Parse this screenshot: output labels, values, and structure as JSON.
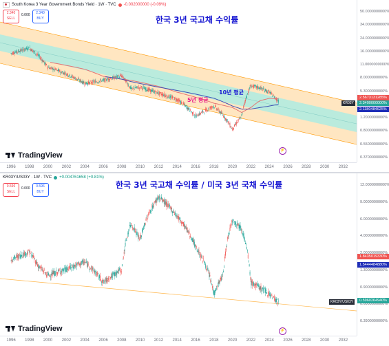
{
  "colors": {
    "candle_up": "#26a69a",
    "candle_down": "#ef5350",
    "ma_short": "#e57373",
    "ma_long": "#3f51b5",
    "channel_inner": "#b2ebe0",
    "channel_outer": "#ffe0b2",
    "title_blue": "#1919d2",
    "anno_pink": "#e91e8c"
  },
  "pane1": {
    "legend": {
      "symbol": "South Korea 3 Year Government Bonds Yield · 1W · TVC",
      "change": "-0.002000000 (-0.09%)"
    },
    "sell": {
      "price": "2.340",
      "label": "SELL"
    },
    "spread": "0.000",
    "buy": {
      "price": "2.340",
      "label": "BUY"
    },
    "title": "한국 3년 국고채 수익률",
    "anno_10y": "10년 평균",
    "anno_5y": "5년 평균",
    "y_ticks": [
      "50.0000000000%",
      "34.0000000000%",
      "24.0000000000%",
      "16.0000000000%",
      "11.0000000000%",
      "8.0000000000%",
      "5.3000000000%",
      "3.5000000000%",
      "1.2000000000%",
      "0.8000000000%",
      "0.5500000000%",
      "0.3700000000%"
    ],
    "price_tags": [
      "2.5673131285%",
      "2.3400000000%",
      "2.1180484625%"
    ],
    "sym_tag": "KR03Y",
    "x_ticks": [
      "1996",
      "1998",
      "2000",
      "2002",
      "2004",
      "2006",
      "2008",
      "2010",
      "2012",
      "2014",
      "2016",
      "2018",
      "2020",
      "2022",
      "2024",
      "2026",
      "2028",
      "2030",
      "2032"
    ],
    "logo": "TradingView",
    "icon": "lightning-icon"
  },
  "pane2": {
    "legend": {
      "symbol": "KR03Y/US03Y · 1W · TVC",
      "change": "+0.004761658 (+0.81%)"
    },
    "sell": {
      "price": "0.596",
      "label": "SELL"
    },
    "spread": "0.000",
    "buy": {
      "price": "0.596",
      "label": "BUY"
    },
    "title": "한국 3년 국고채 수익률 / 미국 3년 국채 수익률",
    "y_ticks": [
      "12.0000000000%",
      "9.0000000000%",
      "6.0000000000%",
      "4.0000000000%",
      "2.0000000000%",
      "1.3000000000%",
      "0.9000000000%",
      "0.6000000000%",
      "0.3900000000%"
    ],
    "price_tags": [
      "1.8435019330%",
      "1.5444484880%",
      "0.5960264940%"
    ],
    "sym_tag": "KR03Y/US03Y",
    "x_ticks": [
      "1996",
      "1998",
      "2000",
      "2002",
      "2004",
      "2006",
      "2008",
      "2010",
      "2012",
      "2014",
      "2016",
      "2018",
      "2020",
      "2022",
      "2024",
      "2026",
      "2028",
      "2030",
      "2032"
    ],
    "logo": "TradingView",
    "icon": "lightning-icon"
  },
  "chart_data": [
    {
      "type": "line",
      "title": "한국 3년 국고채 수익률",
      "log_scale": true,
      "x": [
        1996,
        1998,
        2000,
        2002,
        2004,
        2006,
        2008,
        2009,
        2010,
        2012,
        2014,
        2016,
        2018,
        2020,
        2021,
        2022,
        2023,
        2024,
        2025
      ],
      "series": [
        {
          "name": "KR03Y",
          "values": [
            12.0,
            14.5,
            7.5,
            6.0,
            4.3,
            4.8,
            5.6,
            3.6,
            3.8,
            3.1,
            2.5,
            1.4,
            2.0,
            0.9,
            1.4,
            4.0,
            3.7,
            3.2,
            2.34
          ]
        },
        {
          "name": "10년 평균",
          "values": [
            null,
            null,
            null,
            null,
            null,
            5.5,
            5.0,
            4.6,
            4.3,
            3.8,
            3.4,
            3.0,
            2.6,
            2.0,
            1.8,
            1.8,
            1.9,
            2.0,
            2.12
          ]
        },
        {
          "name": "5년 평균",
          "values": [
            null,
            null,
            9.0,
            8.0,
            7.0,
            5.5,
            5.0,
            4.8,
            4.5,
            3.9,
            3.2,
            2.7,
            2.2,
            1.9,
            1.6,
            1.9,
            2.4,
            2.6,
            2.57
          ]
        }
      ],
      "ylim": [
        0.37,
        50
      ]
    },
    {
      "type": "line",
      "title": "한국 3년 국고채 수익률 / 미국 3년 국채 수익률",
      "log_scale": true,
      "x": [
        1996,
        1998,
        1999,
        2000,
        2002,
        2004,
        2006,
        2008,
        2009,
        2010,
        2012,
        2014,
        2016,
        2018,
        2019,
        2020,
        2021,
        2022,
        2024,
        2025
      ],
      "series": [
        {
          "name": "KR03Y/US03Y",
          "values": [
            1.8,
            2.2,
            1.5,
            1.2,
            1.4,
            1.7,
            1.0,
            1.4,
            4.5,
            3.0,
            9.0,
            5.5,
            2.5,
            0.75,
            1.2,
            5.0,
            4.0,
            1.0,
            0.75,
            0.596
          ]
        }
      ],
      "ylim": [
        0.39,
        12
      ]
    }
  ]
}
